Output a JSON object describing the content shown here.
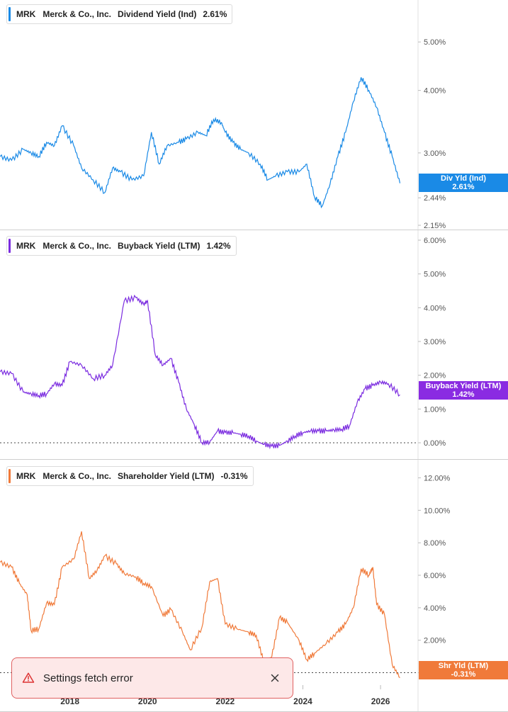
{
  "chart_data": [
    {
      "type": "line",
      "legend": {
        "ticker": "MRK",
        "company": "Merck & Co., Inc.",
        "metric": "Dividend Yield (Ind)",
        "value": "2.61%"
      },
      "color": "#1a8ae6",
      "y_scale": "log",
      "y_ticks": [
        "5.00%",
        "4.00%",
        "3.00%",
        "2.44%",
        "2.15%"
      ],
      "y_tick_values": [
        5.0,
        4.0,
        3.0,
        2.44,
        2.15
      ],
      "ylim": [
        2.15,
        5.5
      ],
      "tag": {
        "line1": "Div Yld (Ind)",
        "line2": "2.61%"
      },
      "series": [
        {
          "x": [
            2016.2,
            2016.5,
            2016.8,
            2017.0,
            2017.2,
            2017.4,
            2017.6,
            2017.8,
            2018.1,
            2018.3,
            2018.6,
            2018.9,
            2019.1,
            2019.3,
            2019.6,
            2019.9,
            2020.1,
            2020.3,
            2020.5,
            2020.8,
            2021.0,
            2021.3,
            2021.5,
            2021.7,
            2021.9,
            2022.0,
            2022.2,
            2022.4,
            2022.6,
            2022.9,
            2023.1,
            2023.3,
            2023.6,
            2023.9,
            2024.1,
            2024.3,
            2024.5,
            2024.7,
            2024.9,
            2025.1,
            2025.3,
            2025.5,
            2025.7,
            2025.9,
            2026.1,
            2026.3,
            2026.5
          ],
          "y": [
            2.95,
            2.9,
            3.05,
            3.0,
            2.95,
            3.15,
            3.1,
            3.4,
            3.1,
            2.8,
            2.65,
            2.5,
            2.8,
            2.75,
            2.65,
            2.7,
            3.3,
            2.85,
            3.1,
            3.15,
            3.2,
            3.3,
            3.25,
            3.5,
            3.45,
            3.3,
            3.15,
            3.05,
            3.0,
            2.85,
            2.65,
            2.7,
            2.75,
            2.75,
            2.85,
            2.45,
            2.35,
            2.6,
            2.95,
            3.3,
            3.8,
            4.25,
            4.0,
            3.7,
            3.3,
            2.95,
            2.61
          ]
        }
      ]
    },
    {
      "type": "line",
      "legend": {
        "ticker": "MRK",
        "company": "Merck & Co., Inc.",
        "metric": "Buyback Yield (LTM)",
        "value": "1.42%"
      },
      "color": "#7b2ce0",
      "y_ticks": [
        "6.00%",
        "5.00%",
        "4.00%",
        "3.00%",
        "2.00%",
        "1.00%",
        "0.00%"
      ],
      "y_tick_values": [
        6,
        5,
        4,
        3,
        2,
        1,
        0
      ],
      "ylim": [
        0,
        6
      ],
      "tag": {
        "line1": "Buyback Yield (LTM)",
        "line2": "1.42%"
      },
      "series": [
        {
          "x": [
            2016.2,
            2016.5,
            2016.8,
            2017.0,
            2017.2,
            2017.4,
            2017.6,
            2017.8,
            2018.0,
            2018.3,
            2018.6,
            2018.9,
            2019.1,
            2019.4,
            2019.7,
            2019.9,
            2020.0,
            2020.2,
            2020.4,
            2020.6,
            2020.8,
            2021.0,
            2021.2,
            2021.4,
            2021.6,
            2021.8,
            2022.0,
            2022.2,
            2022.4,
            2022.6,
            2022.8,
            2023.0,
            2023.2,
            2023.4,
            2023.6,
            2023.8,
            2024.0,
            2024.2,
            2024.4,
            2024.6,
            2024.8,
            2025.0,
            2025.2,
            2025.4,
            2025.6,
            2025.8,
            2026.0,
            2026.2,
            2026.5
          ],
          "y": [
            2.1,
            2.05,
            1.5,
            1.45,
            1.4,
            1.45,
            1.75,
            1.7,
            2.4,
            2.3,
            1.9,
            2.0,
            2.3,
            4.2,
            4.3,
            4.1,
            4.2,
            2.6,
            2.3,
            2.5,
            1.8,
            1.0,
            0.55,
            0.0,
            0.02,
            0.35,
            0.3,
            0.3,
            0.25,
            0.2,
            0.05,
            -0.05,
            -0.1,
            -0.08,
            0.05,
            0.2,
            0.3,
            0.35,
            0.35,
            0.35,
            0.38,
            0.4,
            0.5,
            1.2,
            1.6,
            1.7,
            1.8,
            1.75,
            1.42
          ]
        }
      ]
    },
    {
      "type": "line",
      "legend": {
        "ticker": "MRK",
        "company": "Merck & Co., Inc.",
        "metric": "Shareholder Yield (LTM)",
        "value": "-0.31%"
      },
      "color": "#f07a3a",
      "y_ticks": [
        "12.00%",
        "10.00%",
        "8.00%",
        "6.00%",
        "4.00%",
        "2.00%",
        "0.00%"
      ],
      "y_tick_values": [
        12,
        10,
        8,
        6,
        4,
        2,
        0
      ],
      "ylim": [
        -0.5,
        12.5
      ],
      "tag": {
        "line1": "Shr Yld (LTM)",
        "line2": "-0.31%"
      },
      "x_ticks": [
        "2018",
        "2020",
        "2022",
        "2024",
        "2026"
      ],
      "x_tick_values": [
        2018,
        2020,
        2022,
        2024,
        2026
      ],
      "series": [
        {
          "x": [
            2016.2,
            2016.5,
            2016.7,
            2016.9,
            2017.0,
            2017.2,
            2017.4,
            2017.6,
            2017.8,
            2018.1,
            2018.3,
            2018.5,
            2018.7,
            2018.9,
            2019.2,
            2019.4,
            2019.7,
            2019.9,
            2020.1,
            2020.4,
            2020.6,
            2020.9,
            2021.1,
            2021.4,
            2021.6,
            2021.8,
            2022.0,
            2022.3,
            2022.6,
            2022.8,
            2023.0,
            2023.2,
            2023.4,
            2023.6,
            2023.9,
            2024.1,
            2024.3,
            2024.6,
            2024.9,
            2025.1,
            2025.3,
            2025.5,
            2025.7,
            2025.8,
            2025.9,
            2026.1,
            2026.3,
            2026.5
          ],
          "y": [
            6.8,
            6.5,
            5.5,
            4.8,
            2.6,
            2.7,
            4.3,
            4.2,
            6.5,
            7.0,
            8.7,
            5.8,
            6.3,
            7.2,
            6.7,
            6.1,
            5.9,
            5.5,
            5.3,
            3.5,
            3.9,
            2.5,
            1.4,
            2.8,
            5.6,
            5.8,
            3.0,
            2.7,
            2.5,
            2.3,
            0.6,
            1.0,
            3.4,
            3.1,
            2.0,
            0.8,
            1.2,
            1.8,
            2.5,
            3.0,
            4.0,
            6.4,
            6.0,
            6.5,
            4.2,
            3.6,
            0.5,
            -0.31
          ]
        }
      ]
    }
  ],
  "toast": {
    "message": "Settings fetch error"
  }
}
